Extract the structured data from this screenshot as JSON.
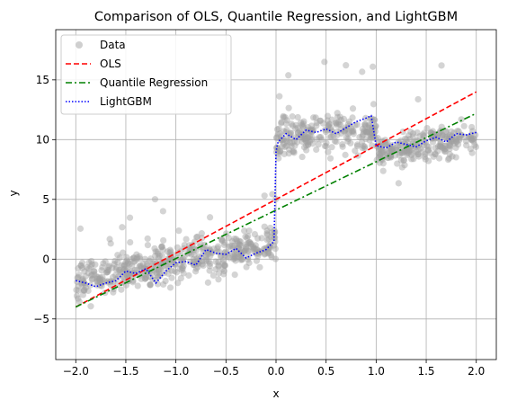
{
  "chart_data": {
    "type": "scatter",
    "title": "Comparison of OLS, Quantile Regression, and LightGBM",
    "xlabel": "x",
    "ylabel": "y",
    "xlim": [
      -2.2,
      2.2
    ],
    "ylim": [
      -8.4,
      19.2
    ],
    "xticks": [
      -2.0,
      -1.5,
      -1.0,
      -0.5,
      0.0,
      0.5,
      1.0,
      1.5,
      2.0
    ],
    "xtick_labels": [
      "−2.0",
      "−1.5",
      "−1.0",
      "−0.5",
      "0.0",
      "0.5",
      "1.0",
      "1.5",
      "2.0"
    ],
    "yticks": [
      -5,
      0,
      5,
      10,
      15
    ],
    "ytick_labels": [
      "−5",
      "0",
      "5",
      "10",
      "15"
    ],
    "grid": true,
    "legend_position": "upper-left",
    "legend": [
      "Data",
      "OLS",
      "Quantile Regression",
      "LightGBM"
    ],
    "colors": {
      "data": "#a0a0a0",
      "ols": "#ff0000",
      "quantile": "#008000",
      "lightgbm": "#0000ff",
      "grid": "#b0b0b0"
    },
    "data_segments": [
      {
        "x_range": [
          -2.0,
          0.0
        ],
        "trend": [
          [
            -2.0,
            -2.0
          ],
          [
            -1.5,
            -1.0
          ],
          [
            -1.0,
            -0.2
          ],
          [
            -0.5,
            0.5
          ],
          [
            0.0,
            1.2
          ]
        ],
        "spread": 1.3
      },
      {
        "x_range": [
          0.0,
          1.0
        ],
        "trend": [
          [
            0.0,
            10.2
          ],
          [
            0.5,
            10.6
          ],
          [
            1.0,
            10.8
          ]
        ],
        "spread": 1.4
      },
      {
        "x_range": [
          1.0,
          2.0
        ],
        "trend": [
          [
            1.0,
            9.0
          ],
          [
            1.5,
            9.6
          ],
          [
            2.0,
            10.2
          ]
        ],
        "spread": 1.1
      }
    ],
    "series": [
      {
        "name": "OLS",
        "style": "dashed",
        "x": [
          -2.0,
          2.0
        ],
        "y": [
          -4.0,
          14.0
        ]
      },
      {
        "name": "Quantile Regression",
        "style": "dashdot",
        "x": [
          -2.0,
          2.0
        ],
        "y": [
          -4.0,
          12.2
        ]
      },
      {
        "name": "LightGBM",
        "style": "dotted",
        "x": [
          -2.0,
          -1.9,
          -1.8,
          -1.7,
          -1.6,
          -1.5,
          -1.4,
          -1.3,
          -1.2,
          -1.1,
          -1.0,
          -0.9,
          -0.8,
          -0.7,
          -0.6,
          -0.5,
          -0.4,
          -0.3,
          -0.2,
          -0.1,
          -0.02,
          0.0,
          0.02,
          0.1,
          0.2,
          0.3,
          0.4,
          0.5,
          0.6,
          0.7,
          0.8,
          0.9,
          0.95,
          1.0,
          1.1,
          1.2,
          1.3,
          1.4,
          1.5,
          1.6,
          1.7,
          1.8,
          1.9,
          2.0
        ],
        "y": [
          -1.8,
          -2.0,
          -2.3,
          -2.0,
          -1.8,
          -1.0,
          -1.2,
          -0.8,
          -2.0,
          -1.0,
          -0.3,
          -0.2,
          -0.5,
          0.8,
          0.5,
          0.4,
          0.9,
          0.1,
          0.5,
          0.8,
          1.5,
          9.0,
          9.8,
          10.5,
          10.0,
          10.8,
          10.6,
          10.9,
          10.5,
          11.0,
          11.5,
          11.8,
          12.0,
          9.5,
          9.3,
          9.8,
          9.6,
          9.4,
          9.9,
          10.2,
          9.8,
          10.5,
          10.4,
          10.6
        ]
      }
    ]
  }
}
